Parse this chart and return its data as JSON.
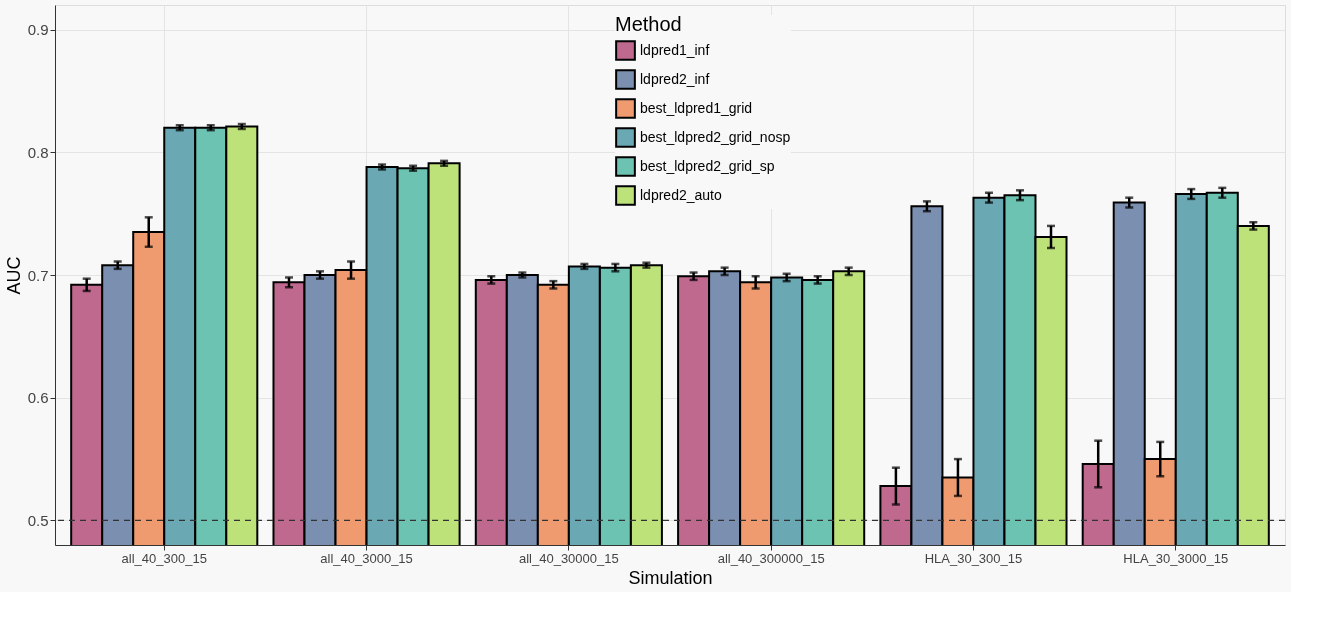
{
  "chart_data": {
    "type": "bar",
    "xlabel": "Simulation",
    "ylabel": "AUC",
    "legend_title": "Method",
    "legend": "top",
    "grid": true,
    "categories": [
      "all_40_300_15",
      "all_40_3000_15",
      "all_40_30000_15",
      "all_40_300000_15",
      "HLA_30_300_15",
      "HLA_30_3000_15"
    ],
    "ylim": [
      0.48,
      0.92
    ],
    "yticks": [
      0.5,
      0.6,
      0.7,
      0.8,
      0.9
    ],
    "ref_lines": [
      {
        "axis": "y",
        "value": 0.5,
        "color": "#333333",
        "line_style": "dashed"
      }
    ],
    "series": [
      {
        "name": "ldpred1_inf",
        "color": "#c0698f",
        "values": [
          0.692,
          0.694,
          0.696,
          0.699,
          0.528,
          0.546
        ],
        "errors": [
          0.005,
          0.004,
          0.003,
          0.003,
          0.015,
          0.019
        ]
      },
      {
        "name": "ldpred2_inf",
        "color": "#7b8fb0",
        "values": [
          0.708,
          0.7,
          0.7,
          0.703,
          0.756,
          0.759
        ],
        "errors": [
          0.003,
          0.003,
          0.002,
          0.003,
          0.004,
          0.004
        ]
      },
      {
        "name": "best_ldpred1_grid",
        "color": "#ef9b6f",
        "values": [
          0.735,
          0.704,
          0.692,
          0.694,
          0.535,
          0.55
        ],
        "errors": [
          0.012,
          0.007,
          0.003,
          0.005,
          0.015,
          0.014
        ]
      },
      {
        "name": "best_ldpred2_grid_nosp",
        "color": "#6aa8b4",
        "values": [
          0.82,
          0.788,
          0.707,
          0.698,
          0.763,
          0.766
        ],
        "errors": [
          0.002,
          0.002,
          0.002,
          0.003,
          0.004,
          0.004
        ]
      },
      {
        "name": "best_ldpred2_grid_sp",
        "color": "#6cc3b1",
        "values": [
          0.82,
          0.787,
          0.706,
          0.696,
          0.765,
          0.767
        ],
        "errors": [
          0.002,
          0.002,
          0.003,
          0.003,
          0.004,
          0.004
        ]
      },
      {
        "name": "ldpred2_auto",
        "color": "#bde27a",
        "values": [
          0.821,
          0.791,
          0.708,
          0.703,
          0.731,
          0.74
        ],
        "errors": [
          0.002,
          0.002,
          0.002,
          0.003,
          0.009,
          0.003
        ]
      }
    ]
  }
}
